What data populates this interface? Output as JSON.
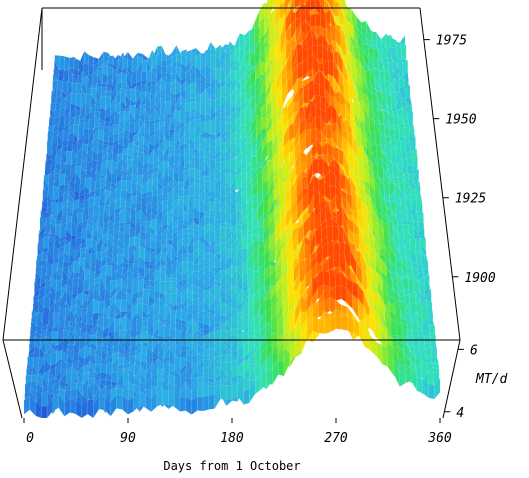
{
  "chart_data": {
    "type": "surface",
    "xlabel": "Days from 1 October",
    "ylabel": "",
    "zlabel": "MT/d",
    "x_ticks": [
      "0",
      "90",
      "180",
      "270",
      "360"
    ],
    "y_ticks": [
      "1900",
      "1925",
      "1950",
      "1975"
    ],
    "z_ticks": [
      "4",
      "6"
    ],
    "xlim": [
      0,
      360
    ],
    "ylim": [
      1880,
      1985
    ],
    "zlim": [
      3.8,
      6.3
    ],
    "surface_shape": "seasonal peak near day 260-280, values highest (red/orange) around day 270, lower (blue) early in the season",
    "colormap": [
      "#1e4fd8",
      "#2aa8e8",
      "#2fe0c0",
      "#39e050",
      "#b8f020",
      "#ffe200",
      "#ffa000",
      "#ff4a00"
    ]
  }
}
